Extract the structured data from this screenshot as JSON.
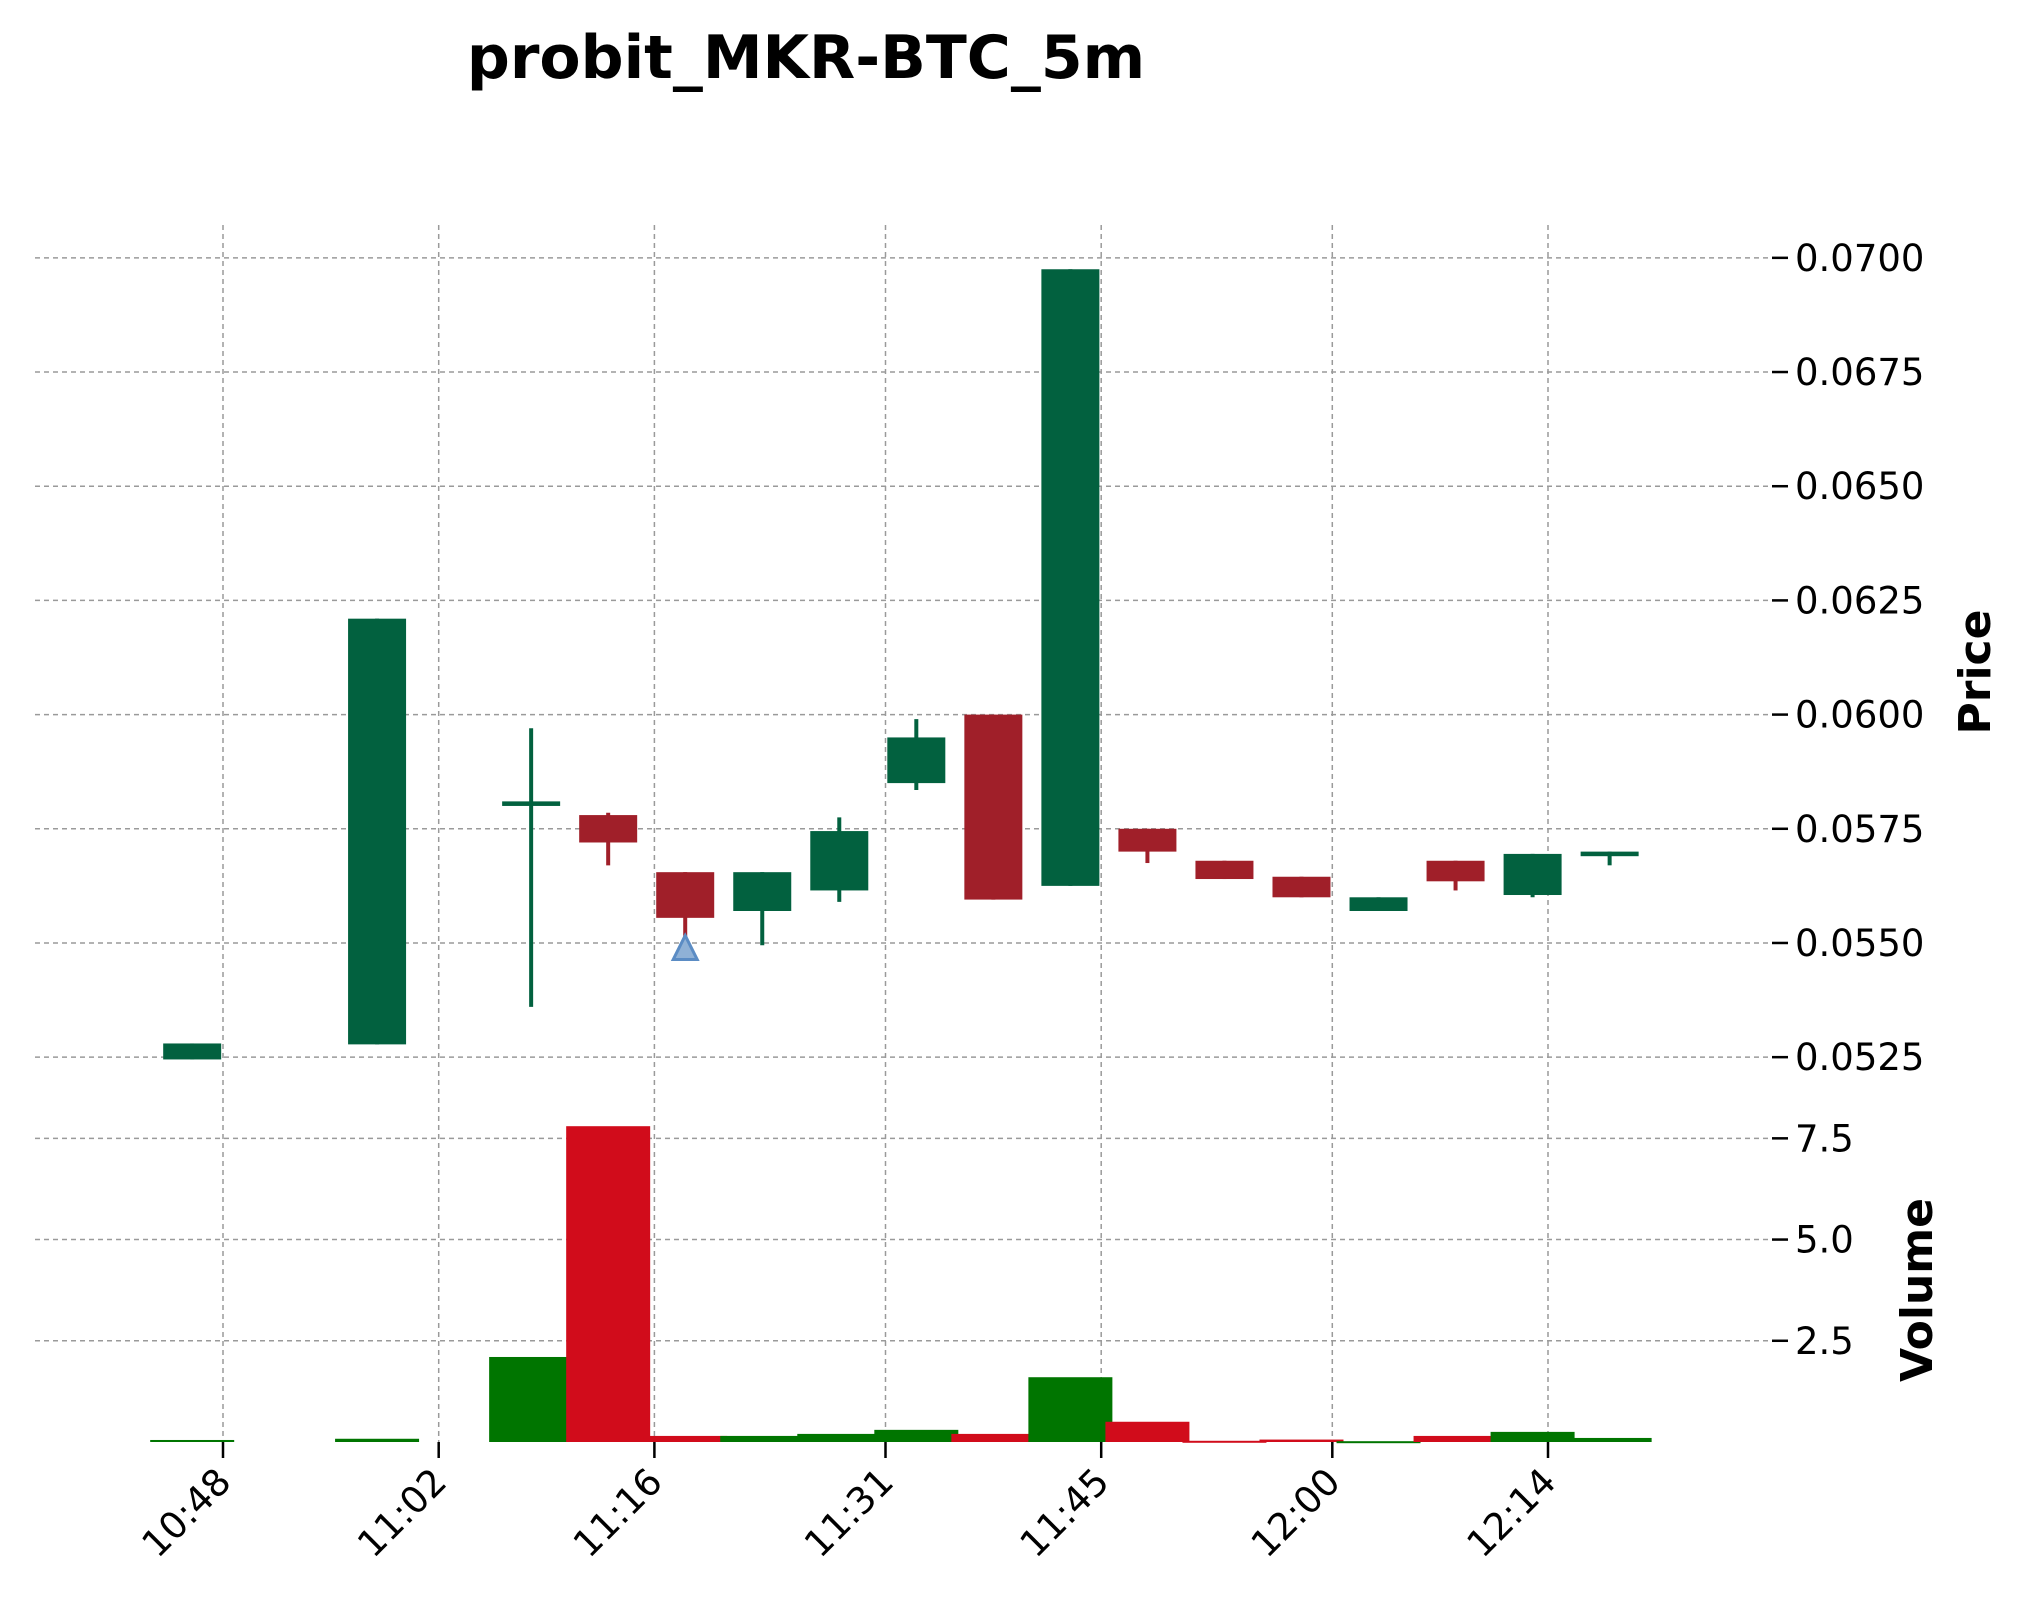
{
  "chart_data": {
    "type": "candlestick",
    "title": "probit_MKR-BTC_5m",
    "price_axis": {
      "label": "Price",
      "ylim": [
        0.052,
        0.0705
      ],
      "ticks": [
        0.0525,
        0.055,
        0.0575,
        0.06,
        0.0625,
        0.065,
        0.0675,
        0.07
      ],
      "tick_labels": [
        "0.0525",
        "0.0550",
        "0.0575",
        "0.0600",
        "0.0625",
        "0.0650",
        "0.0675",
        "0.0700"
      ],
      "position": "right"
    },
    "volume_axis": {
      "label": "Volume",
      "ylim": [
        0,
        8.2
      ],
      "ticks": [
        2.5,
        5.0,
        7.5
      ],
      "tick_labels": [
        "2.5",
        "5.0",
        "7.5"
      ],
      "position": "right"
    },
    "x_axis": {
      "tick_labels": [
        "10:48",
        "11:02",
        "11:16",
        "11:31",
        "11:45",
        "12:00",
        "12:14"
      ],
      "tick_minutes": [
        648,
        662,
        676,
        691,
        705,
        720,
        734
      ]
    },
    "candles": [
      {
        "time": "10:46",
        "open": 0.05245,
        "high": 0.0528,
        "low": 0.05245,
        "close": 0.0528,
        "volume": 0.05
      },
      {
        "time": "10:58",
        "open": 0.05278,
        "high": 0.0621,
        "low": 0.05278,
        "close": 0.0621,
        "volume": 0.08
      },
      {
        "time": "11:08",
        "open": 0.058,
        "high": 0.0597,
        "low": 0.0536,
        "close": 0.0581,
        "volume": 2.1
      },
      {
        "time": "11:13",
        "open": 0.0578,
        "high": 0.05785,
        "low": 0.0567,
        "close": 0.0572,
        "volume": 7.8
      },
      {
        "time": "11:18",
        "open": 0.05655,
        "high": 0.05655,
        "low": 0.055,
        "close": 0.05555,
        "volume": 0.15
      },
      {
        "time": "11:23",
        "open": 0.0557,
        "high": 0.05655,
        "low": 0.05495,
        "close": 0.05655,
        "volume": 0.15
      },
      {
        "time": "11:28",
        "open": 0.05615,
        "high": 0.05775,
        "low": 0.0559,
        "close": 0.05745,
        "volume": 0.2
      },
      {
        "time": "11:33",
        "open": 0.0585,
        "high": 0.0599,
        "low": 0.05835,
        "close": 0.0595,
        "volume": 0.3
      },
      {
        "time": "11:38",
        "open": 0.06,
        "high": 0.06,
        "low": 0.05595,
        "close": 0.05595,
        "volume": 0.2
      },
      {
        "time": "11:43",
        "open": 0.05625,
        "high": 0.06975,
        "low": 0.05625,
        "close": 0.06975,
        "volume": 1.6
      },
      {
        "time": "11:48",
        "open": 0.0575,
        "high": 0.0575,
        "low": 0.05675,
        "close": 0.057,
        "volume": 0.5
      },
      {
        "time": "11:53",
        "open": 0.0568,
        "high": 0.0568,
        "low": 0.0564,
        "close": 0.0564,
        "volume": 0.03
      },
      {
        "time": "11:58",
        "open": 0.05645,
        "high": 0.05645,
        "low": 0.056,
        "close": 0.056,
        "volume": 0.06
      },
      {
        "time": "12:03",
        "open": 0.0557,
        "high": 0.056,
        "low": 0.0557,
        "close": 0.056,
        "volume": 0.02
      },
      {
        "time": "12:08",
        "open": 0.0568,
        "high": 0.0568,
        "low": 0.05615,
        "close": 0.05635,
        "volume": 0.15
      },
      {
        "time": "12:13",
        "open": 0.05605,
        "high": 0.05695,
        "low": 0.056,
        "close": 0.05695,
        "volume": 0.25
      },
      {
        "time": "12:18",
        "open": 0.0569,
        "high": 0.057,
        "low": 0.0567,
        "close": 0.057,
        "volume": 0.1
      }
    ],
    "markers": [
      {
        "type": "buy-triangle",
        "time": "11:18",
        "price": 0.0549
      }
    ],
    "grid": true,
    "colors": {
      "up_candle": "#02613f",
      "down_candle": "#a01f29",
      "up_volume": "#007500",
      "down_volume": "#d10c1b",
      "marker_fill": "#8fb1d6",
      "marker_edge": "#5b8cc4",
      "grid": "#9a9a9a"
    }
  }
}
